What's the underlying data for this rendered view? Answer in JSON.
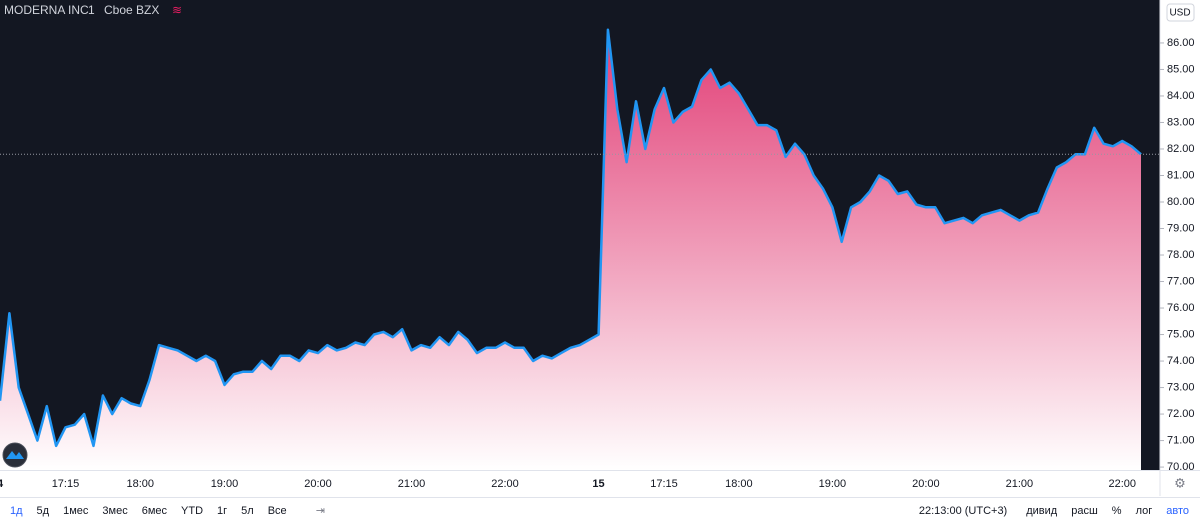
{
  "chart_data": {
    "type": "area",
    "title": "MODERNA INC",
    "interval": "1",
    "exchange": "Cboe BZX",
    "currency": "USD",
    "categories": [
      "4",
      null,
      null,
      null,
      null,
      null,
      null,
      "17:15",
      null,
      null,
      null,
      null,
      null,
      null,
      null,
      "18:00",
      null,
      null,
      null,
      null,
      null,
      null,
      null,
      null,
      "19:00",
      null,
      null,
      null,
      null,
      null,
      null,
      null,
      null,
      null,
      "20:00",
      null,
      null,
      null,
      null,
      null,
      null,
      null,
      null,
      null,
      "21:00",
      null,
      null,
      null,
      null,
      null,
      null,
      null,
      null,
      null,
      "22:00",
      null,
      null,
      null,
      null,
      null,
      null,
      null,
      null,
      null,
      "15",
      null,
      null,
      null,
      null,
      null,
      null,
      "17:15",
      null,
      null,
      null,
      null,
      null,
      null,
      null,
      "18:00",
      null,
      null,
      null,
      null,
      null,
      null,
      null,
      null,
      null,
      "19:00",
      null,
      null,
      null,
      null,
      null,
      null,
      null,
      null,
      null,
      "20:00",
      null,
      null,
      null,
      null,
      null,
      null,
      null,
      null,
      null,
      "21:00",
      null,
      null,
      null,
      null,
      null,
      null,
      null,
      null,
      null,
      null,
      "22:00",
      null,
      null
    ],
    "values": [
      72.5,
      75.8,
      73.0,
      72.0,
      71.0,
      72.3,
      70.8,
      71.5,
      71.6,
      72.0,
      70.8,
      72.7,
      72.0,
      72.6,
      72.4,
      72.3,
      73.3,
      74.6,
      74.5,
      74.4,
      74.2,
      74.0,
      74.2,
      74.0,
      73.1,
      73.5,
      73.6,
      73.6,
      74.0,
      73.7,
      74.2,
      74.2,
      74.0,
      74.4,
      74.3,
      74.6,
      74.4,
      74.5,
      74.7,
      74.6,
      75.0,
      75.1,
      74.9,
      75.2,
      74.4,
      74.6,
      74.5,
      74.9,
      74.6,
      75.1,
      74.8,
      74.3,
      74.5,
      74.5,
      74.7,
      74.5,
      74.5,
      74.0,
      74.2,
      74.1,
      74.3,
      74.5,
      74.6,
      74.8,
      75.0,
      86.5,
      83.5,
      81.5,
      83.8,
      82.0,
      83.5,
      84.3,
      83.0,
      83.4,
      83.6,
      84.6,
      85.0,
      84.3,
      84.5,
      84.1,
      83.5,
      82.9,
      82.9,
      82.7,
      81.7,
      82.2,
      81.8,
      81.0,
      80.5,
      79.8,
      78.5,
      79.8,
      80.0,
      80.4,
      81.0,
      80.8,
      80.3,
      80.4,
      79.9,
      79.8,
      79.8,
      79.2,
      79.3,
      79.4,
      79.2,
      79.5,
      79.6,
      79.7,
      79.5,
      79.3,
      79.5,
      79.6,
      80.5,
      81.3,
      81.5,
      81.8,
      81.8,
      82.8,
      82.2,
      82.1,
      82.3,
      82.1,
      81.8
    ],
    "color": "#2196f3",
    "area_color": "#ec407a",
    "ylim": [
      69.89,
      87.62
    ],
    "yticks": [
      {
        "value": 70,
        "label": "70.00"
      },
      {
        "value": 71,
        "label": "71.00"
      },
      {
        "value": 72,
        "label": "72.00"
      },
      {
        "value": 73,
        "label": "73.00"
      },
      {
        "value": 74,
        "label": "74.00"
      },
      {
        "value": 75,
        "label": "75.00"
      },
      {
        "value": 76,
        "label": "76.00"
      },
      {
        "value": 77,
        "label": "77.00"
      },
      {
        "value": 78,
        "label": "78.00"
      },
      {
        "value": 79,
        "label": "79.00"
      },
      {
        "value": 80,
        "label": "80.00"
      },
      {
        "value": 81,
        "label": "81.00"
      },
      {
        "value": 82,
        "label": "82.00"
      },
      {
        "value": 83,
        "label": "83.00"
      },
      {
        "value": 84,
        "label": "84.00"
      },
      {
        "value": 85,
        "label": "85.00"
      },
      {
        "value": 86,
        "label": "86.00"
      }
    ],
    "grid": false
  },
  "toolbar": {
    "ranges": [
      "1д",
      "5д",
      "1мес",
      "3мес",
      "6мес",
      "YTD",
      "1г",
      "5л",
      "Все"
    ],
    "clock": "22:13:00 (UTC+3)",
    "options": [
      "дивид",
      "расш",
      "%",
      "лог",
      "авто"
    ]
  }
}
